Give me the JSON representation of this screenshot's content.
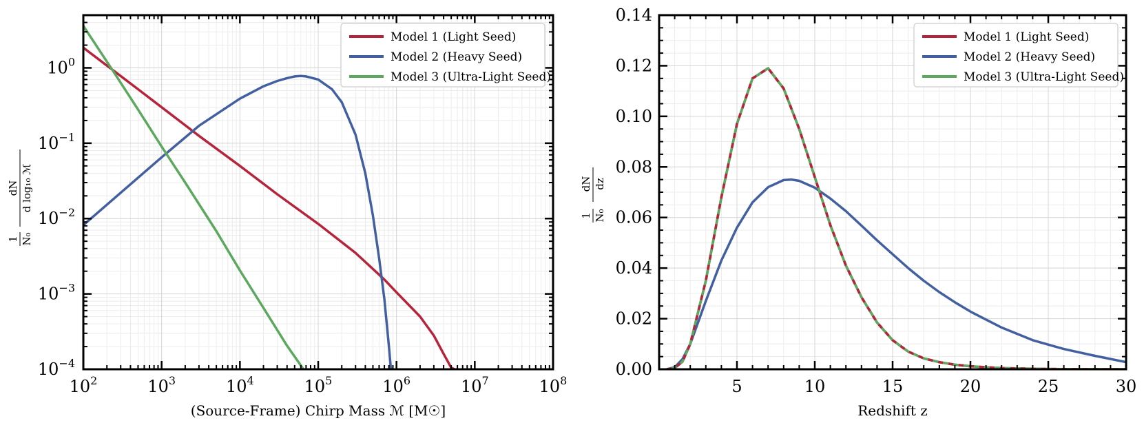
{
  "chart_data": [
    {
      "type": "line",
      "id": "mass",
      "xscale": "log",
      "yscale": "log",
      "xlim": [
        100,
        100000000
      ],
      "ylim": [
        0.0001,
        5
      ],
      "xlabel": "(Source-Frame) Chirp Mass ℳ [M☉]",
      "ylabel": "(1/N₀) dN / d log₁₀ ℳ",
      "ylabel_parts": {
        "num": "1",
        "den": "N₀",
        "dnum": "dN",
        "dden": "d log₁₀ ℳ"
      },
      "legend_position": "top-right",
      "grid": true,
      "x_ticks": [
        {
          "value": 100,
          "base": "10",
          "exp": "2"
        },
        {
          "value": 1000,
          "base": "10",
          "exp": "3"
        },
        {
          "value": 10000,
          "base": "10",
          "exp": "4"
        },
        {
          "value": 100000,
          "base": "10",
          "exp": "5"
        },
        {
          "value": 1000000,
          "base": "10",
          "exp": "6"
        },
        {
          "value": 10000000,
          "base": "10",
          "exp": "7"
        },
        {
          "value": 100000000,
          "base": "10",
          "exp": "8"
        }
      ],
      "y_ticks": [
        {
          "value": 0.0001,
          "base": "10",
          "exp": "−4"
        },
        {
          "value": 0.001,
          "base": "10",
          "exp": "−3"
        },
        {
          "value": 0.01,
          "base": "10",
          "exp": "−2"
        },
        {
          "value": 0.1,
          "base": "10",
          "exp": "−1"
        },
        {
          "value": 1,
          "base": "10",
          "exp": "0"
        }
      ],
      "series": [
        {
          "name": "Model 1 (Light Seed)",
          "color": "#b5243a",
          "x": [
            100,
            200,
            500,
            1000,
            3000,
            10000,
            30000,
            100000,
            300000,
            700000,
            1000000,
            2000000,
            3000000,
            4000000,
            5000000,
            5500000
          ],
          "y": [
            1.85,
            1.07,
            0.52,
            0.3,
            0.125,
            0.05,
            0.021,
            0.0085,
            0.0035,
            0.00155,
            0.00105,
            0.0005,
            0.00028,
            0.00016,
            0.000105,
            0.0001
          ]
        },
        {
          "name": "Model 2 (Heavy Seed)",
          "color": "#4260a0",
          "x": [
            100,
            300,
            1000,
            3000,
            10000,
            20000,
            30000,
            40000,
            50000,
            60000,
            70000,
            100000,
            150000,
            200000,
            300000,
            400000,
            500000,
            600000,
            700000,
            800000,
            850000
          ],
          "y": [
            0.0082,
            0.022,
            0.065,
            0.17,
            0.39,
            0.57,
            0.67,
            0.73,
            0.77,
            0.78,
            0.77,
            0.7,
            0.52,
            0.35,
            0.13,
            0.04,
            0.011,
            0.003,
            0.00085,
            0.0002,
            0.0001
          ]
        },
        {
          "name": "Model 3 (Ultra-Light Seed)",
          "color": "#5ca85e",
          "x": [
            100,
            250,
            500,
            1000,
            2000,
            5000,
            10000,
            20000,
            40000,
            65000
          ],
          "y": [
            3.6,
            0.85,
            0.28,
            0.09,
            0.03,
            0.0068,
            0.00205,
            0.00065,
            0.000205,
            0.0001
          ]
        }
      ]
    },
    {
      "type": "line",
      "id": "redshift",
      "xscale": "linear",
      "yscale": "linear",
      "xlim": [
        0,
        30
      ],
      "ylim": [
        0,
        0.14
      ],
      "xlabel": "Redshift z",
      "ylabel": "(1/N₀) dN / dz",
      "ylabel_parts": {
        "num": "1",
        "den": "N₀",
        "dnum": "dN",
        "dden": "dz"
      },
      "legend_position": "top-right",
      "grid": true,
      "x_ticks": [
        {
          "value": 5,
          "label": "5"
        },
        {
          "value": 10,
          "label": "10"
        },
        {
          "value": 15,
          "label": "15"
        },
        {
          "value": 20,
          "label": "20"
        },
        {
          "value": 25,
          "label": "25"
        },
        {
          "value": 30,
          "label": "30"
        }
      ],
      "y_ticks": [
        {
          "value": 0,
          "label": "0.00"
        },
        {
          "value": 0.02,
          "label": "0.02"
        },
        {
          "value": 0.04,
          "label": "0.04"
        },
        {
          "value": 0.06,
          "label": "0.06"
        },
        {
          "value": 0.08,
          "label": "0.08"
        },
        {
          "value": 0.1,
          "label": "0.10"
        },
        {
          "value": 0.12,
          "label": "0.12"
        },
        {
          "value": 0.14,
          "label": "0.14"
        }
      ],
      "series": [
        {
          "name": "Model 1 (Light Seed)",
          "color": "#b5243a",
          "dashed": true,
          "x": [
            0.5,
            1,
            1.5,
            2,
            3,
            4,
            5,
            6,
            7,
            8,
            9,
            10,
            11,
            12,
            13,
            14,
            15,
            16,
            17,
            18,
            19,
            20,
            21,
            22,
            23,
            24,
            25,
            26,
            28,
            30
          ],
          "y": [
            0.0,
            0.0005,
            0.003,
            0.01,
            0.035,
            0.068,
            0.097,
            0.115,
            0.119,
            0.111,
            0.095,
            0.076,
            0.057,
            0.041,
            0.0285,
            0.0185,
            0.0115,
            0.007,
            0.0043,
            0.0028,
            0.0018,
            0.0012,
            0.0008,
            0.0005,
            0.0003,
            0.0002,
            0.00012,
            8e-05,
            3e-05,
            0.0
          ]
        },
        {
          "name": "Model 2 (Heavy Seed)",
          "color": "#4260a0",
          "x": [
            0.5,
            1,
            1.5,
            2,
            3,
            4,
            5,
            6,
            7,
            8,
            8.5,
            9,
            10,
            11,
            12,
            13,
            14,
            15,
            16,
            17,
            18,
            19,
            20,
            22,
            24,
            26,
            28,
            30
          ],
          "y": [
            0.0,
            0.0008,
            0.004,
            0.01,
            0.027,
            0.043,
            0.056,
            0.066,
            0.072,
            0.0748,
            0.075,
            0.0745,
            0.0718,
            0.0675,
            0.0625,
            0.0568,
            0.051,
            0.0455,
            0.04,
            0.035,
            0.0305,
            0.0265,
            0.0228,
            0.0165,
            0.0115,
            0.008,
            0.0053,
            0.0028
          ]
        },
        {
          "name": "Model 3 (Ultra-Light Seed)",
          "color": "#5ca85e",
          "x": [
            0.5,
            1,
            1.5,
            2,
            3,
            4,
            5,
            6,
            7,
            8,
            9,
            10,
            11,
            12,
            13,
            14,
            15,
            16,
            17,
            18,
            19,
            20,
            21,
            22,
            23,
            24,
            25,
            26,
            28,
            30
          ],
          "y": [
            0.0,
            0.0005,
            0.003,
            0.01,
            0.035,
            0.068,
            0.097,
            0.115,
            0.119,
            0.111,
            0.095,
            0.076,
            0.057,
            0.041,
            0.0285,
            0.0185,
            0.0115,
            0.007,
            0.0043,
            0.0028,
            0.0018,
            0.0012,
            0.0008,
            0.0005,
            0.0003,
            0.0002,
            0.00012,
            8e-05,
            3e-05,
            0.0
          ]
        }
      ]
    }
  ]
}
